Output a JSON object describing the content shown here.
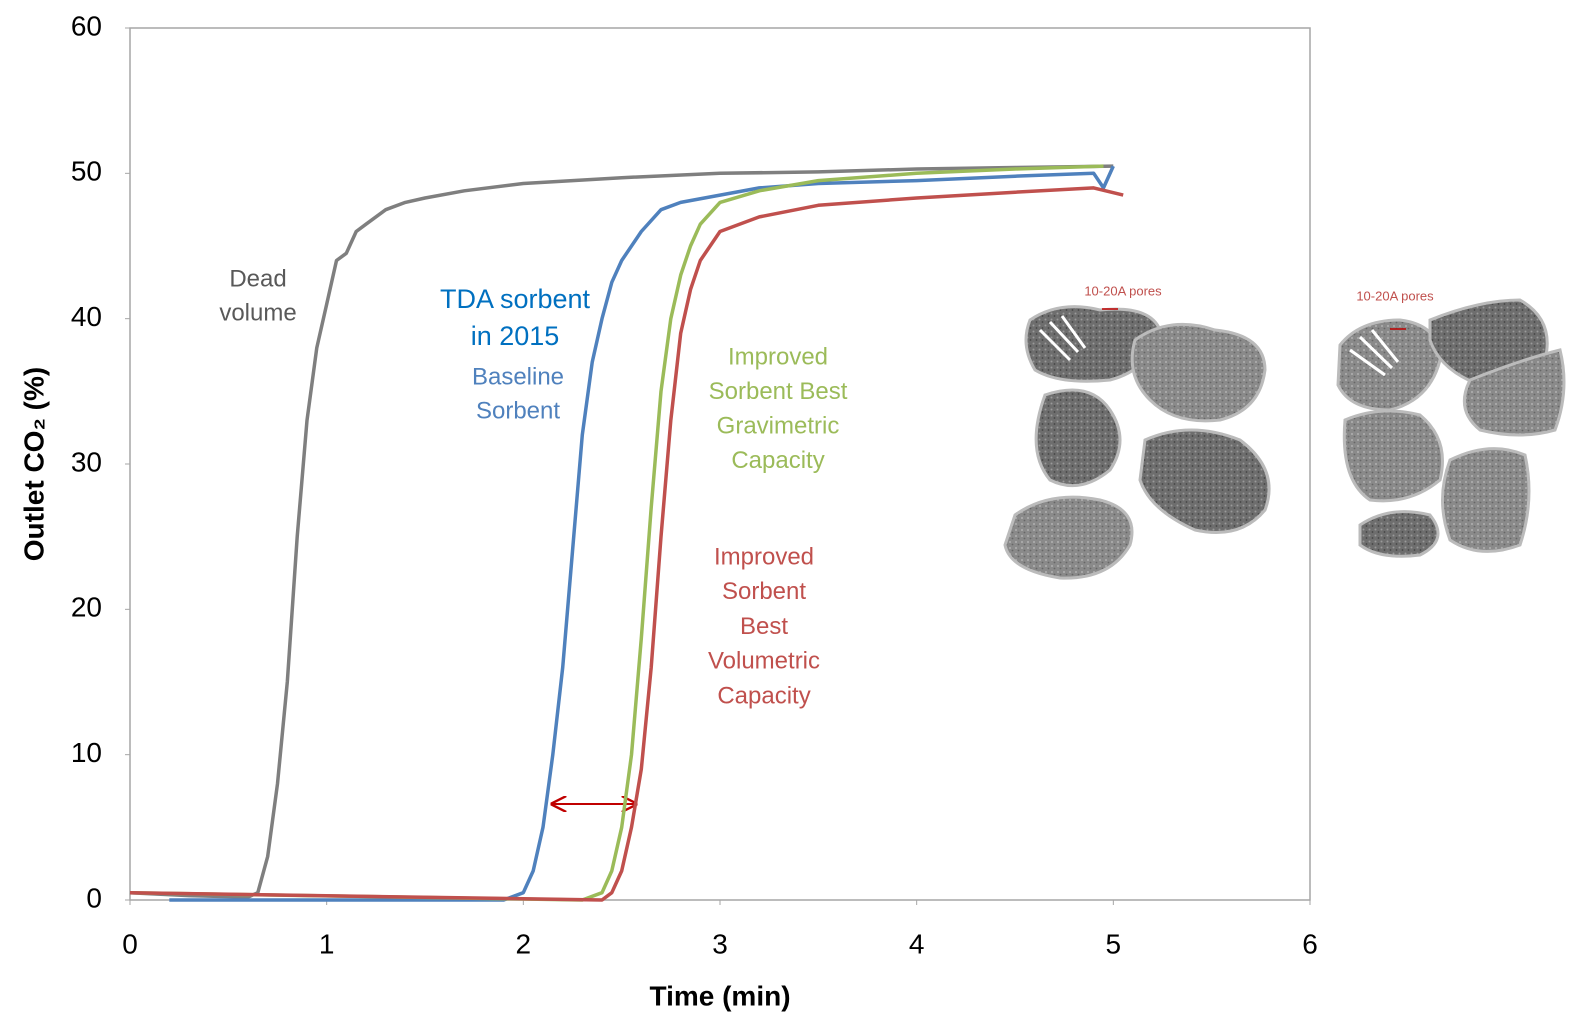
{
  "chart_data": {
    "type": "line",
    "x_label": "Time (min)",
    "y_label": "Outlet CO₂ (%)",
    "xlim": [
      0,
      6
    ],
    "xticks": [
      0,
      1,
      2,
      3,
      4,
      5,
      6
    ],
    "ylim": [
      0,
      60
    ],
    "yticks": [
      0,
      10,
      20,
      30,
      40,
      50,
      60
    ],
    "grid": false,
    "series": [
      {
        "color": "#7f7f7f",
        "x": [
          0,
          0.3,
          0.6,
          0.65,
          0.7,
          0.75,
          0.8,
          0.85,
          0.9,
          0.95,
          1.0,
          1.05,
          1.1,
          1.15,
          1.2,
          1.3,
          1.4,
          1.5,
          1.7,
          2.0,
          2.5,
          3.0,
          3.5,
          4.0,
          4.5,
          5.0
        ],
        "values": [
          0.5,
          0.3,
          0.2,
          0.5,
          3,
          8,
          15,
          25,
          33,
          38,
          41,
          44,
          44.5,
          46,
          46.5,
          47.5,
          48,
          48.3,
          48.8,
          49.3,
          49.7,
          50,
          50.1,
          50.3,
          50.4,
          50.5
        ]
      },
      {
        "color": "#4f81bd",
        "x": [
          0.2,
          1.9,
          2.0,
          2.05,
          2.1,
          2.15,
          2.2,
          2.25,
          2.3,
          2.35,
          2.4,
          2.45,
          2.5,
          2.6,
          2.7,
          2.8,
          3.0,
          3.2,
          3.5,
          4.0,
          4.5,
          4.9,
          4.95,
          5.0
        ],
        "values": [
          0,
          0,
          0.5,
          2,
          5,
          10,
          16,
          24,
          32,
          37,
          40,
          42.5,
          44,
          46,
          47.5,
          48,
          48.5,
          49,
          49.3,
          49.5,
          49.8,
          50,
          49,
          50.5
        ]
      },
      {
        "color": "#9bbb59",
        "x": [
          0,
          2.3,
          2.4,
          2.45,
          2.5,
          2.55,
          2.6,
          2.65,
          2.7,
          2.75,
          2.8,
          2.85,
          2.9,
          3.0,
          3.2,
          3.5,
          4.0,
          4.5,
          4.95
        ],
        "values": [
          0.5,
          0,
          0.5,
          2,
          5,
          10,
          18,
          27,
          35,
          40,
          43,
          45,
          46.5,
          48,
          48.8,
          49.5,
          50,
          50.3,
          50.5
        ]
      },
      {
        "color": "#c0504d",
        "x": [
          0,
          2.4,
          2.45,
          2.5,
          2.55,
          2.6,
          2.65,
          2.7,
          2.75,
          2.8,
          2.85,
          2.9,
          3.0,
          3.2,
          3.5,
          4.0,
          4.5,
          4.9,
          5.05
        ],
        "values": [
          0.5,
          0,
          0.5,
          2,
          5,
          9,
          16,
          25,
          33,
          39,
          42,
          44,
          46,
          47,
          47.8,
          48.3,
          48.7,
          49,
          48.5
        ]
      }
    ],
    "annotations": [
      {
        "lines": [
          "Dead",
          "volume"
        ],
        "color": "#595959"
      },
      {
        "lines": [
          "TDA sorbent",
          "in 2015"
        ],
        "color": "#0070c0"
      },
      {
        "lines": [
          "Baseline",
          "Sorbent"
        ],
        "color": "#4f81bd"
      },
      {
        "lines": [
          "Improved",
          "Sorbent Best",
          "Gravimetric",
          "Capacity"
        ],
        "color": "#9bbb59"
      },
      {
        "lines": [
          "Improved",
          "Sorbent",
          "Best",
          "Volumetric",
          "Capacity"
        ],
        "color": "#c0504d"
      }
    ],
    "images": [
      {
        "label": "10-20A pores"
      },
      {
        "label": "10-20A pores"
      }
    ]
  }
}
